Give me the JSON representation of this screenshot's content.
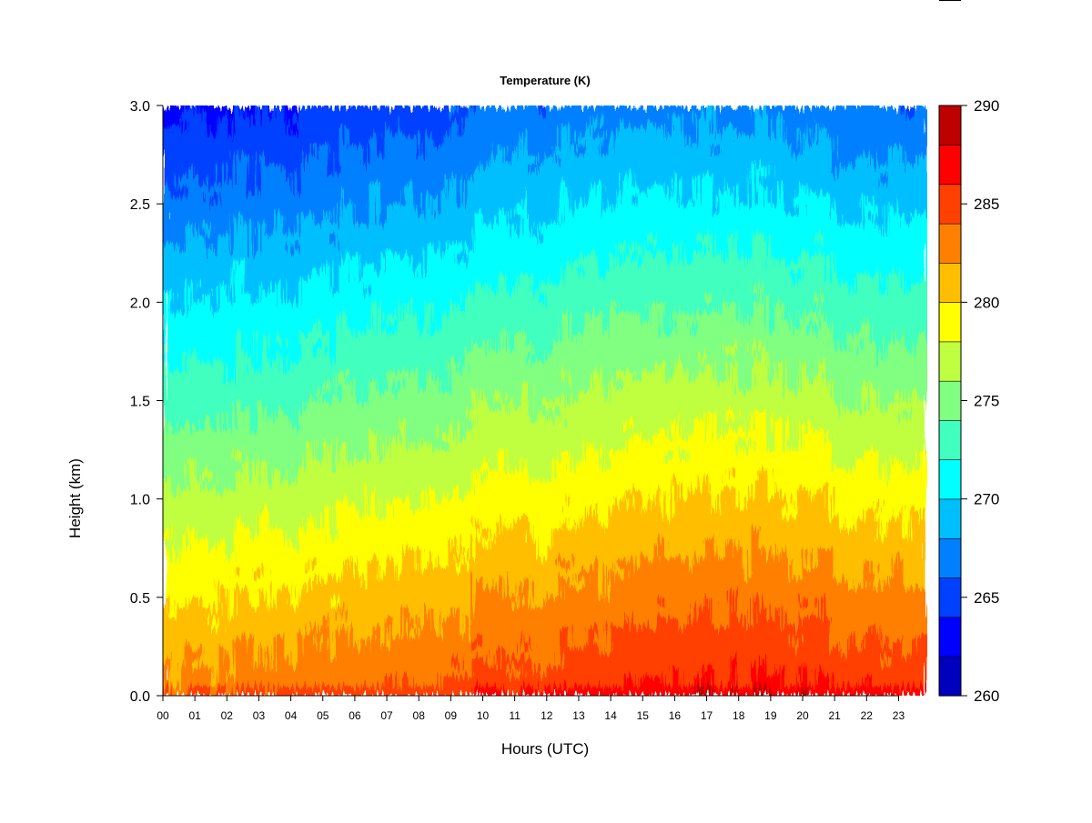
{
  "chart_data": {
    "type": "heatmap",
    "title": "Temperature (K)",
    "xlabel": "Hours (UTC)",
    "ylabel": "Height (km)",
    "x_tick_labels": [
      "00",
      "01",
      "02",
      "03",
      "04",
      "05",
      "06",
      "07",
      "08",
      "09",
      "10",
      "11",
      "12",
      "13",
      "14",
      "15",
      "16",
      "17",
      "18",
      "19",
      "20",
      "21",
      "22",
      "23"
    ],
    "xlim": [
      0,
      23.9
    ],
    "y_ticks": [
      0.0,
      0.5,
      1.0,
      1.5,
      2.0,
      2.5,
      3.0
    ],
    "y_tick_labels": [
      "0.0",
      "0.5",
      "1.0",
      "1.5",
      "2.0",
      "2.5",
      "3.0"
    ],
    "ylim": [
      0,
      3.0
    ],
    "colorbar": {
      "ticks": [
        260,
        265,
        270,
        275,
        280,
        285,
        290
      ],
      "tick_labels": [
        "260",
        "265",
        "270",
        "275",
        "280",
        "285",
        "290"
      ],
      "range": [
        260,
        290
      ],
      "levels": 15,
      "level_colors": [
        "#00007f",
        "#0000bf",
        "#0000ff",
        "#0040ff",
        "#0080ff",
        "#00bfff",
        "#00ffff",
        "#40ffbf",
        "#80ff80",
        "#bfff40",
        "#ffff00",
        "#ffbf00",
        "#ff8000",
        "#ff4000",
        "#ff0000",
        "#bf0000",
        "#800000"
      ]
    },
    "z_summary": {
      "description_hours": [
        0,
        4,
        8,
        11,
        14,
        17,
        20,
        23
      ],
      "surface_K": [
        283,
        283.5,
        284.5,
        285,
        286,
        287,
        286.5,
        285.5
      ],
      "lapse_K_per_km": [
        6.5,
        6.5,
        6.5,
        6.2,
        6.3,
        6.5,
        6.5,
        6.5
      ]
    }
  }
}
